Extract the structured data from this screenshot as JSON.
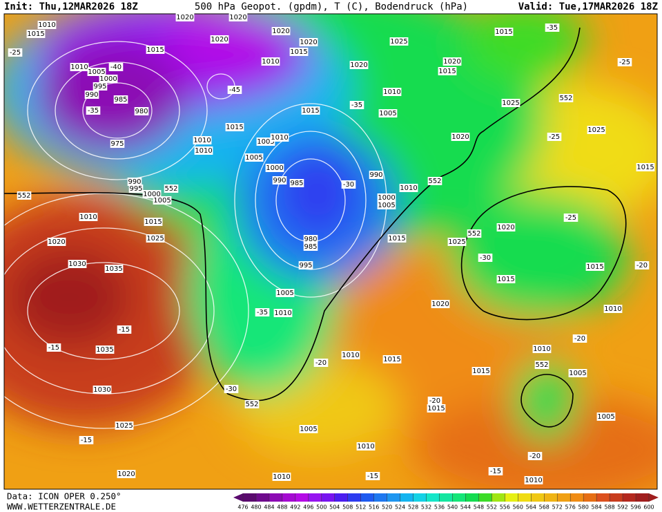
{
  "header": {
    "init": "Init: Thu,12MAR2026 18Z",
    "title": "500 hPa Geopot. (gpdm), T (C), Bodendruck (hPa)",
    "valid": "Valid: Tue,17MAR2026 18Z"
  },
  "footer": {
    "data": "Data: ICON OPER 0.250°",
    "site": "WWW.WETTERZENTRALE.DE"
  },
  "colorbar": {
    "ticks": [
      476,
      480,
      484,
      488,
      492,
      496,
      500,
      504,
      508,
      512,
      516,
      520,
      524,
      528,
      532,
      536,
      540,
      544,
      548,
      552,
      556,
      560,
      564,
      568,
      572,
      576,
      580,
      584,
      588,
      592,
      596,
      600
    ],
    "colors": [
      "#5a0a6e",
      "#6e0a8c",
      "#8c0ab4",
      "#a50ad2",
      "#b40ae6",
      "#9614f0",
      "#7814f0",
      "#4b1ef0",
      "#2d3cf0",
      "#1e5af0",
      "#1e78f0",
      "#1e96f0",
      "#14b4f0",
      "#14d2e6",
      "#14e6c8",
      "#14e6a0",
      "#14e678",
      "#14dc50",
      "#3cdc28",
      "#a0e614",
      "#e6f014",
      "#f0dc14",
      "#f0c814",
      "#f0b414",
      "#f0a014",
      "#f08c14",
      "#e66e14",
      "#dc501e",
      "#c83c1e",
      "#b4281e",
      "#a01e1e"
    ]
  },
  "map": {
    "labels": [
      "1020",
      "1020",
      "1010",
      "1015",
      "1020",
      "1020",
      "1020",
      "1015",
      "1025",
      "1015",
      "1015",
      "1010",
      "1005",
      "1000",
      "995",
      "990",
      "985",
      "980",
      "975",
      "1010",
      "1020",
      "1020",
      "1015",
      "1010",
      "1005",
      "1015",
      "1015",
      "1010",
      "1010",
      "1005",
      "1010",
      "1005",
      "1020",
      "1025",
      "1025",
      "1015",
      "1000",
      "990",
      "985",
      "990",
      "1010",
      "1000",
      "1005",
      "990",
      "995",
      "1000",
      "1005",
      "1010",
      "1015",
      "1025",
      "1020",
      "1030",
      "1035",
      "1015",
      "1025",
      "1020",
      "1015",
      "1015",
      "1010",
      "980",
      "985",
      "995",
      "1005",
      "1010",
      "1020",
      "1035",
      "1030",
      "1025",
      "1020",
      "1010",
      "1015",
      "1015",
      "1010",
      "1005",
      "1015",
      "1005",
      "1010",
      "1005",
      "1010",
      "1010",
      "-25",
      "-40",
      "-45",
      "-35",
      "-35",
      "-30",
      "-25",
      "-25",
      "-30",
      "-30",
      "-35",
      "-20",
      "-15",
      "-15",
      "-15",
      "-20",
      "-20",
      "-15",
      "-15",
      "-20",
      "-20",
      "-35",
      "-25",
      "552",
      "552",
      "552",
      "552",
      "552",
      "552",
      "552"
    ]
  }
}
